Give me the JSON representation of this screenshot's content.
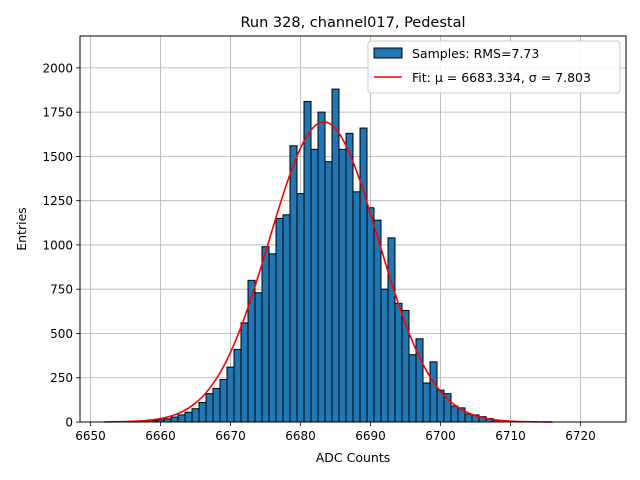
{
  "chart_data": {
    "type": "bar",
    "title": "Run 328, channel017, Pedestal",
    "xlabel": "ADC Counts",
    "ylabel": "Entries",
    "xlim": [
      6648.5,
      6726.5
    ],
    "ylim": [
      0,
      2180
    ],
    "xticks": [
      6650,
      6660,
      6670,
      6680,
      6690,
      6700,
      6710,
      6720
    ],
    "yticks": [
      0,
      250,
      500,
      750,
      1000,
      1250,
      1500,
      1750,
      2000
    ],
    "grid": true,
    "legend_position": "top-right",
    "bin_width": 1,
    "bar_color": "#1f77b4",
    "bar_edge_color": "#000000",
    "fit_color": "#ff0000",
    "series": [
      {
        "name": "Samples: RMS=7.73",
        "kind": "histogram",
        "x": [
          6656,
          6657,
          6658,
          6659,
          6660,
          6661,
          6662,
          6663,
          6664,
          6665,
          6666,
          6667,
          6668,
          6669,
          6670,
          6671,
          6672,
          6673,
          6674,
          6675,
          6676,
          6677,
          6678,
          6679,
          6680,
          6681,
          6682,
          6683,
          6684,
          6685,
          6686,
          6687,
          6688,
          6689,
          6690,
          6691,
          6692,
          6693,
          6694,
          6695,
          6696,
          6697,
          6698,
          6699,
          6700,
          6701,
          6702,
          6703,
          6704,
          6705,
          6706,
          6707,
          6708
        ],
        "values": [
          2,
          3,
          5,
          8,
          12,
          18,
          28,
          40,
          55,
          75,
          110,
          160,
          190,
          240,
          310,
          410,
          560,
          800,
          730,
          990,
          950,
          1150,
          1170,
          1560,
          1290,
          1810,
          1540,
          1750,
          1470,
          1880,
          1540,
          1630,
          1300,
          1660,
          1210,
          1140,
          750,
          1040,
          670,
          630,
          380,
          470,
          220,
          340,
          180,
          160,
          90,
          80,
          45,
          40,
          30,
          20,
          10
        ]
      },
      {
        "name": "Fit: μ = 6683.334, σ = 7.803",
        "kind": "gaussian-fit",
        "mu": 6683.334,
        "sigma": 7.803,
        "amplitude": 1695,
        "x_range": [
          6652,
          6716
        ]
      }
    ]
  }
}
